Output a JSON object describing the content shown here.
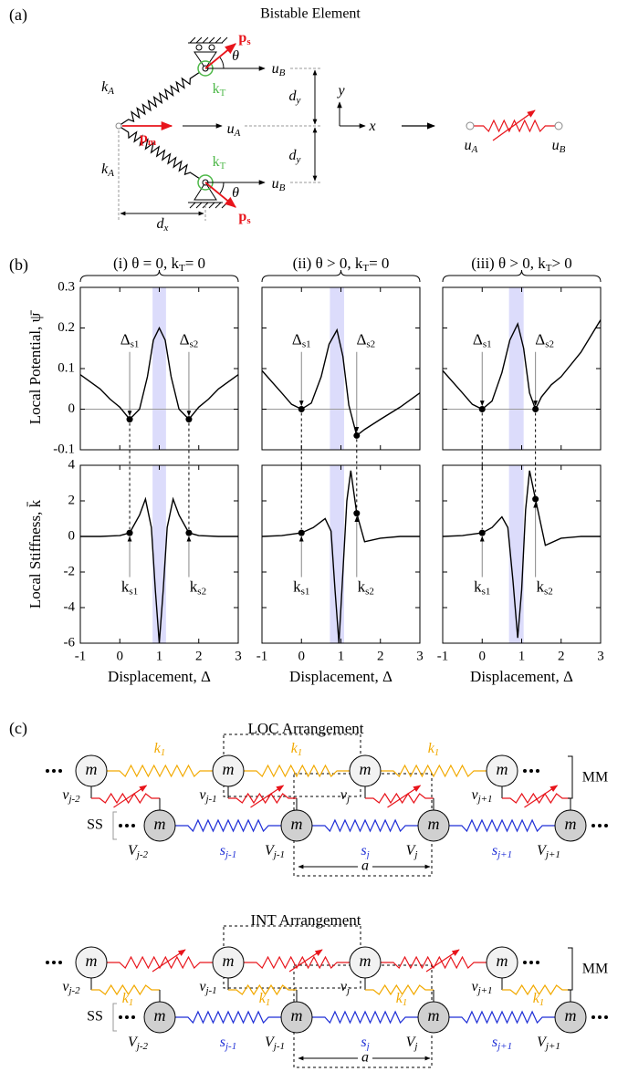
{
  "panel_a": {
    "label": "(a)",
    "title": "Bistable Element",
    "labels": [
      {
        "base": "k",
        "sub": "A"
      },
      {
        "base": "k",
        "sub": "T"
      },
      {
        "base": "p",
        "sub": "s"
      },
      {
        "base": "θ"
      },
      {
        "base": "u",
        "sub": "B"
      },
      {
        "base": "p",
        "sub": "m"
      },
      {
        "base": "u",
        "sub": "A"
      },
      {
        "base": "d",
        "sub": "y"
      },
      {
        "base": "d",
        "sub": "y"
      },
      {
        "base": "k",
        "sub": "A"
      },
      {
        "base": "k",
        "sub": "T"
      },
      {
        "base": "θ"
      },
      {
        "base": "u",
        "sub": "B"
      },
      {
        "base": "p",
        "sub": "s"
      },
      {
        "base": "d",
        "sub": "x"
      },
      {
        "base": "y"
      },
      {
        "base": "x"
      },
      {
        "base": "u",
        "sub": "A"
      },
      {
        "base": "u",
        "sub": "B"
      }
    ]
  },
  "panel_b": {
    "label": "(b)"
  },
  "chart_data": [
    {
      "type": "line",
      "subtitle": [
        {
          "base": "(i)    θ = 0, k",
          "sub": "T"
        },
        {
          "base": "= 0"
        }
      ],
      "ylabel": "Local Potential, ψ̄",
      "x": [
        -1,
        -0.5,
        -0.25,
        0,
        0.25,
        0.5,
        0.7,
        0.85,
        1,
        1.15,
        1.3,
        1.5,
        1.75,
        2,
        2.25,
        2.5,
        3
      ],
      "values": [
        0.085,
        0.05,
        0.025,
        0.005,
        -0.025,
        0,
        0.08,
        0.17,
        0.2,
        0.17,
        0.08,
        0,
        -0.025,
        0.005,
        0.025,
        0.05,
        0.085
      ],
      "color": "#000000",
      "xlim": [
        -1,
        3
      ],
      "xticks": [
        -1,
        0,
        1,
        2,
        3
      ],
      "ylim": [
        -0.1,
        0.3
      ],
      "yticks": [
        -0.1,
        0,
        0.1,
        0.2,
        0.3
      ],
      "band": [
        0.83,
        1.17
      ],
      "zero_line": true,
      "points": {
        "x": [
          0.25,
          1.75
        ],
        "values": [
          -0.025,
          -0.025
        ]
      },
      "annotations": [
        {
          "base": "Δ",
          "sub": "s1"
        },
        {
          "base": "Δ",
          "sub": "s2"
        }
      ]
    },
    {
      "type": "line",
      "subtitle": [
        {
          "base": "(ii)    θ > 0, k",
          "sub": "T"
        },
        {
          "base": "= 0"
        }
      ],
      "x": [
        -1,
        -0.5,
        -0.25,
        0,
        0.25,
        0.5,
        0.7,
        0.9,
        1.05,
        1.2,
        1.4,
        1.6,
        2,
        2.5,
        3
      ],
      "values": [
        0.095,
        0.04,
        0.012,
        0,
        0.015,
        0.08,
        0.16,
        0.195,
        0.13,
        0.01,
        -0.065,
        -0.05,
        -0.025,
        0.005,
        0.04
      ],
      "color": "#000000",
      "xlim": [
        -1,
        3
      ],
      "xticks": [
        -1,
        0,
        1,
        2,
        3
      ],
      "ylim": [
        -0.1,
        0.3
      ],
      "yticks": [
        -0.1,
        0,
        0.1,
        0.2,
        0.3
      ],
      "band": [
        0.72,
        1.08
      ],
      "zero_line": true,
      "points": {
        "x": [
          0,
          1.4
        ],
        "values": [
          0,
          -0.065
        ]
      },
      "annotations": [
        {
          "base": "Δ",
          "sub": "s1"
        },
        {
          "base": "Δ",
          "sub": "s2"
        }
      ]
    },
    {
      "type": "line",
      "subtitle": [
        {
          "base": "(iii)    θ > 0, k",
          "sub": "T"
        },
        {
          "base": "> 0"
        }
      ],
      "x": [
        -1,
        -0.5,
        -0.25,
        0,
        0.25,
        0.5,
        0.7,
        0.9,
        1.05,
        1.2,
        1.35,
        1.5,
        1.75,
        2,
        2.5,
        3
      ],
      "values": [
        0.095,
        0.04,
        0.012,
        0,
        0.02,
        0.09,
        0.17,
        0.21,
        0.15,
        0.04,
        0,
        0.03,
        0.06,
        0.08,
        0.14,
        0.22
      ],
      "color": "#000000",
      "xlim": [
        -1,
        3
      ],
      "xticks": [
        -1,
        0,
        1,
        2,
        3
      ],
      "ylim": [
        -0.1,
        0.3
      ],
      "yticks": [
        -0.1,
        0,
        0.1,
        0.2,
        0.3
      ],
      "band": [
        0.68,
        1.05
      ],
      "zero_line": true,
      "points": {
        "x": [
          0,
          1.35
        ],
        "values": [
          0,
          0
        ]
      },
      "annotations": [
        {
          "base": "Δ",
          "sub": "s1"
        },
        {
          "base": "Δ",
          "sub": "s2"
        }
      ]
    },
    {
      "type": "line",
      "ylabel": "Local Stiffness, k̄",
      "xlabel": "Displacement, Δ",
      "x": [
        -1,
        -0.5,
        0,
        0.25,
        0.5,
        0.65,
        0.8,
        0.9,
        1,
        1.1,
        1.2,
        1.35,
        1.5,
        1.75,
        2,
        2.5,
        3
      ],
      "values": [
        0,
        0,
        0.05,
        0.2,
        1.2,
        2.1,
        0.5,
        -3,
        -6,
        -3,
        0.5,
        2.1,
        1.2,
        0.2,
        0.05,
        0,
        0
      ],
      "color": "#000000",
      "xlim": [
        -1,
        3
      ],
      "xticks": [
        -1,
        0,
        1,
        2,
        3
      ],
      "ylim": [
        -6,
        4
      ],
      "yticks": [
        -6,
        -4,
        -2,
        0,
        2,
        4
      ],
      "band": [
        0.83,
        1.17
      ],
      "points": {
        "x": [
          0.25,
          1.75
        ],
        "values": [
          0.2,
          0.2
        ]
      },
      "annotations": [
        {
          "base": "k",
          "sub": "s1"
        },
        {
          "base": "k",
          "sub": "s2"
        }
      ]
    },
    {
      "type": "line",
      "xlabel": "Displacement, Δ",
      "x": [
        -1,
        -0.5,
        0,
        0.3,
        0.6,
        0.75,
        0.85,
        0.95,
        1.05,
        1.15,
        1.25,
        1.4,
        1.6,
        2,
        2.5,
        3
      ],
      "values": [
        0,
        0.05,
        0.2,
        0.5,
        1,
        0.3,
        -3,
        -6,
        -2,
        2,
        3.7,
        1.3,
        -0.3,
        -0.1,
        0,
        0
      ],
      "color": "#000000",
      "xlim": [
        -1,
        3
      ],
      "xticks": [
        -1,
        0,
        1,
        2,
        3
      ],
      "ylim": [
        -6,
        4
      ],
      "yticks": [
        -6,
        -4,
        -2,
        0,
        2,
        4
      ],
      "band": [
        0.72,
        1.08
      ],
      "points": {
        "x": [
          0,
          1.4
        ],
        "values": [
          0.2,
          1.3
        ]
      },
      "annotations": [
        {
          "base": "k",
          "sub": "s1"
        },
        {
          "base": "k",
          "sub": "s2"
        }
      ]
    },
    {
      "type": "line",
      "xlabel": "Displacement, Δ",
      "x": [
        -1,
        -0.5,
        0,
        0.25,
        0.5,
        0.65,
        0.78,
        0.9,
        1,
        1.1,
        1.2,
        1.35,
        1.6,
        2,
        2.5,
        3
      ],
      "values": [
        0,
        0.05,
        0.2,
        0.5,
        1.1,
        0.5,
        -2.5,
        -5.7,
        -3,
        1.5,
        3.7,
        2.1,
        -0.5,
        -0.1,
        0,
        0
      ],
      "color": "#000000",
      "xlim": [
        -1,
        3
      ],
      "xticks": [
        -1,
        0,
        1,
        2,
        3
      ],
      "ylim": [
        -6,
        4
      ],
      "yticks": [
        -6,
        -4,
        -2,
        0,
        2,
        4
      ],
      "band": [
        0.68,
        1.05
      ],
      "points": {
        "x": [
          0,
          1.35
        ],
        "values": [
          0.2,
          2.1
        ]
      },
      "annotations": [
        {
          "base": "k",
          "sub": "s1"
        },
        {
          "base": "k",
          "sub": "s2"
        }
      ]
    }
  ],
  "panel_c": {
    "label": "(c)",
    "arrangements": [
      {
        "title": "LOC Arrangement",
        "top_masses": [
          "m",
          "m",
          "m",
          "m"
        ],
        "bottom_masses": [
          "m",
          "m",
          "m",
          "m"
        ],
        "top_labels": [
          {
            "base": "v",
            "sub": "j-2"
          },
          {
            "base": "v",
            "sub": "j-1"
          },
          {
            "base": "v",
            "sub": "j"
          },
          {
            "base": "v",
            "sub": "j+1"
          }
        ],
        "bottom_labels": [
          {
            "base": "V",
            "sub": "j-2"
          },
          {
            "base": "V",
            "sub": "j-1"
          },
          {
            "base": "V",
            "sub": "j"
          },
          {
            "base": "V",
            "sub": "j+1"
          }
        ],
        "k_labels": [
          {
            "base": "k",
            "sub": "1"
          },
          {
            "base": "k",
            "sub": "1"
          },
          {
            "base": "k",
            "sub": "1"
          }
        ],
        "s_labels": [
          {
            "base": "s",
            "sub": "j-1"
          },
          {
            "base": "s",
            "sub": "j"
          },
          {
            "base": "s",
            "sub": "j+1"
          }
        ],
        "mm": "MM",
        "ss": "SS",
        "a": "a"
      },
      {
        "title": "INT Arrangement",
        "top_masses": [
          "m",
          "m",
          "m",
          "m"
        ],
        "bottom_masses": [
          "m",
          "m",
          "m",
          "m"
        ],
        "top_labels": [
          {
            "base": "v",
            "sub": "j-2"
          },
          {
            "base": "v",
            "sub": "j-1"
          },
          {
            "base": "v",
            "sub": "j"
          },
          {
            "base": "v",
            "sub": "j+1"
          }
        ],
        "bottom_labels": [
          {
            "base": "V",
            "sub": "j-2"
          },
          {
            "base": "V",
            "sub": "j-1"
          },
          {
            "base": "V",
            "sub": "j"
          },
          {
            "base": "V",
            "sub": "j+1"
          }
        ],
        "k_labels": [
          {
            "base": "k",
            "sub": "1"
          },
          {
            "base": "k",
            "sub": "1"
          },
          {
            "base": "k",
            "sub": "1"
          },
          {
            "base": "k",
            "sub": "1"
          }
        ],
        "s_labels": [
          {
            "base": "s",
            "sub": "j-1"
          },
          {
            "base": "s",
            "sub": "j"
          },
          {
            "base": "s",
            "sub": "j+1"
          }
        ],
        "mm": "MM",
        "ss": "SS",
        "a": "a"
      }
    ]
  }
}
